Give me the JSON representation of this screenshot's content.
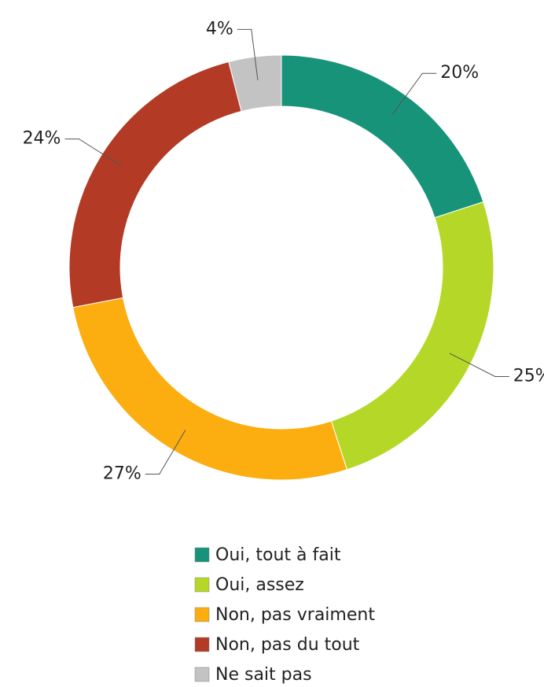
{
  "chart_data": {
    "type": "donut",
    "categories": [
      "Oui, tout à fait",
      "Oui, assez",
      "Non, pas vraiment",
      "Non, pas du tout",
      "Ne sait pas"
    ],
    "values": [
      20,
      25,
      27,
      24,
      4
    ],
    "value_labels": [
      "20%",
      "25%",
      "27%",
      "24%",
      "4%"
    ],
    "colors": [
      "#17937a",
      "#b5d828",
      "#fcad0f",
      "#b33a25",
      "#c3c3c3"
    ],
    "legend": "bottom"
  }
}
